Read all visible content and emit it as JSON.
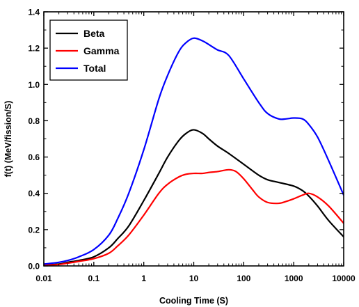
{
  "chart_data": {
    "type": "line",
    "title": "",
    "xlabel": "Cooling Time (S)",
    "ylabel": "f(t) (MeV/fission/S)",
    "xscale": "log",
    "xlim": [
      0.01,
      10000
    ],
    "ylim": [
      0,
      1.4
    ],
    "xticks": [
      0.01,
      0.1,
      1,
      10,
      100,
      1000,
      10000
    ],
    "xtick_labels": [
      "0.01",
      "0.1",
      "1",
      "10",
      "100",
      "1000",
      "10000"
    ],
    "yticks": [
      0.0,
      0.2,
      0.4,
      0.6,
      0.8,
      1.0,
      1.2,
      1.4
    ],
    "ytick_labels": [
      "0.0",
      "0.2",
      "0.4",
      "0.6",
      "0.8",
      "1.0",
      "1.2",
      "1.4"
    ],
    "grid": false,
    "legend_position": "top-left",
    "series": [
      {
        "name": "Beta",
        "color": "#000000",
        "x": [
          0.01,
          0.02,
          0.03,
          0.05,
          0.1,
          0.2,
          0.3,
          0.5,
          1,
          2,
          3,
          5,
          7,
          10,
          15,
          20,
          30,
          50,
          100,
          200,
          300,
          500,
          1000,
          1500,
          2000,
          3000,
          5000,
          10000
        ],
        "y": [
          0.005,
          0.01,
          0.02,
          0.03,
          0.05,
          0.1,
          0.15,
          0.22,
          0.36,
          0.51,
          0.6,
          0.69,
          0.73,
          0.75,
          0.73,
          0.7,
          0.66,
          0.62,
          0.56,
          0.5,
          0.475,
          0.46,
          0.44,
          0.415,
          0.385,
          0.33,
          0.25,
          0.16
        ]
      },
      {
        "name": "Gamma",
        "color": "#ff0000",
        "x": [
          0.01,
          0.02,
          0.03,
          0.05,
          0.1,
          0.2,
          0.3,
          0.5,
          1,
          2,
          3,
          5,
          7,
          10,
          15,
          20,
          30,
          50,
          70,
          100,
          150,
          200,
          300,
          500,
          700,
          1000,
          1500,
          2000,
          3000,
          5000,
          10000
        ],
        "y": [
          0.003,
          0.008,
          0.015,
          0.025,
          0.04,
          0.07,
          0.11,
          0.17,
          0.28,
          0.4,
          0.45,
          0.49,
          0.505,
          0.51,
          0.51,
          0.515,
          0.52,
          0.53,
          0.52,
          0.48,
          0.42,
          0.38,
          0.35,
          0.345,
          0.355,
          0.37,
          0.39,
          0.4,
          0.38,
          0.33,
          0.235
        ]
      },
      {
        "name": "Total",
        "color": "#0000ff",
        "x": [
          0.01,
          0.02,
          0.03,
          0.05,
          0.1,
          0.2,
          0.3,
          0.5,
          1,
          2,
          3,
          5,
          7,
          10,
          15,
          20,
          30,
          50,
          100,
          200,
          300,
          500,
          700,
          1000,
          1500,
          2000,
          3000,
          5000,
          10000
        ],
        "y": [
          0.01,
          0.02,
          0.03,
          0.05,
          0.09,
          0.17,
          0.26,
          0.4,
          0.64,
          0.92,
          1.05,
          1.18,
          1.23,
          1.255,
          1.24,
          1.22,
          1.19,
          1.16,
          1.03,
          0.9,
          0.84,
          0.81,
          0.81,
          0.815,
          0.81,
          0.78,
          0.71,
          0.58,
          0.39
        ]
      }
    ]
  }
}
